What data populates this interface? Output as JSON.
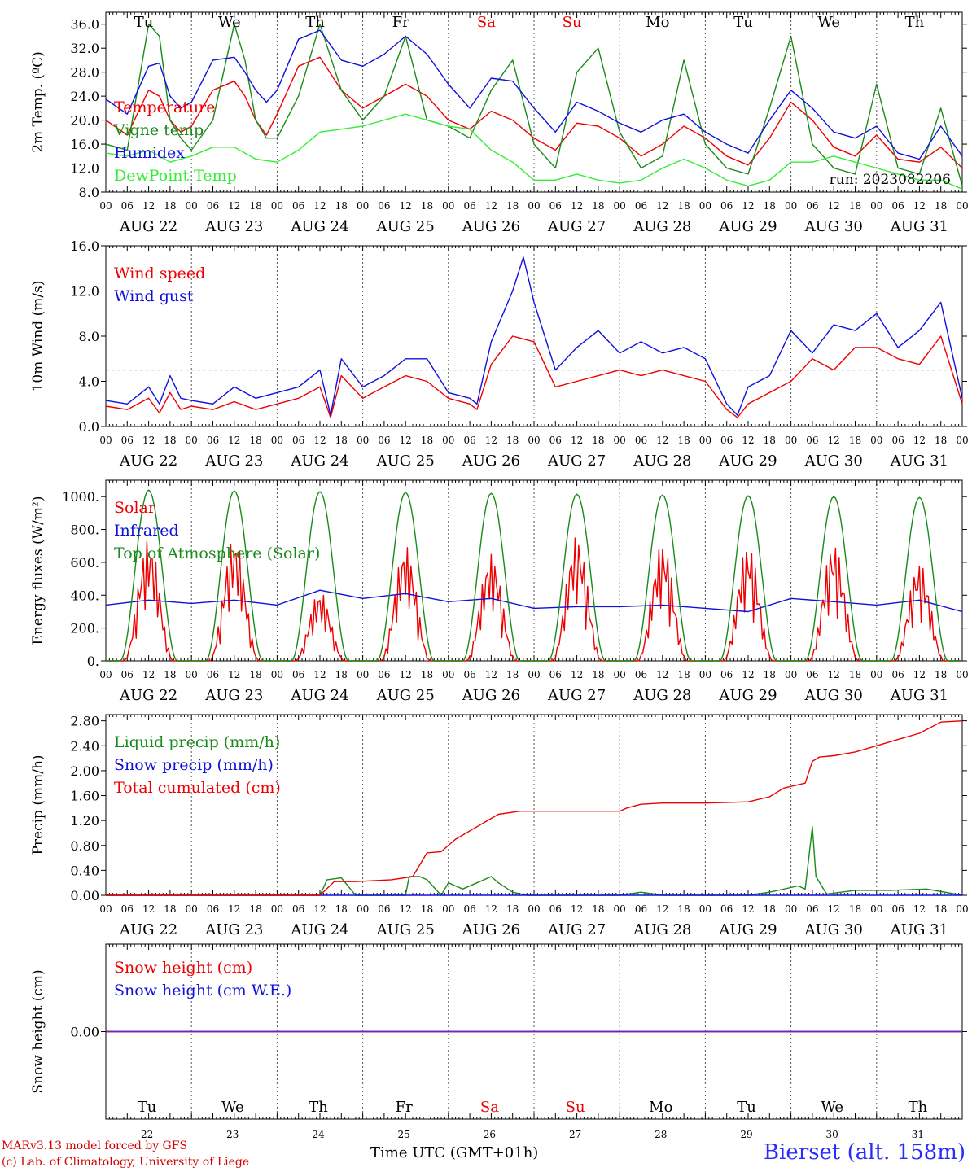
{
  "colors": {
    "red": "#ee0000",
    "green": "#1a8a1a",
    "blue": "#1010dd",
    "lightgreen": "#33ee33",
    "purple": "#7a22aa",
    "weekend": "#ee0000"
  },
  "time_axis": {
    "hour_labels": [
      "00",
      "06",
      "12",
      "18"
    ],
    "last_label": "00",
    "date_labels": [
      "AUG 22",
      "AUG 23",
      "AUG 24",
      "AUG 25",
      "AUG 26",
      "AUG 27",
      "AUG 28",
      "AUG 29",
      "AUG 30",
      "AUG 31"
    ],
    "days": [
      "Tu",
      "We",
      "Th",
      "Fr",
      "Sa",
      "Su",
      "Mo",
      "Tu",
      "We",
      "Th"
    ],
    "day_weekend": [
      false,
      false,
      false,
      false,
      true,
      true,
      false,
      false,
      false,
      false
    ],
    "day_numbers": [
      "22",
      "23",
      "24",
      "25",
      "26",
      "27",
      "28",
      "29",
      "30",
      "31"
    ]
  },
  "footer": {
    "credit_line1": "MARv3.13 model forced by GFS",
    "credit_line2": "(c) Lab. of Climatology, University of Liege",
    "x_title": "Time UTC (GMT+01h)",
    "station": "Bierset (alt. 158m)"
  },
  "chart_data": [
    {
      "type": "line",
      "ylabel": "2m Temp. (ºC)",
      "ylim": [
        8,
        38
      ],
      "yticks": [
        8,
        12,
        16,
        20,
        24,
        28,
        32,
        36
      ],
      "ytick_labels": [
        "8.0",
        "12.0",
        "16.0",
        "20.0",
        "24.0",
        "28.0",
        "32.0",
        "36.0"
      ],
      "annotation": "run: 2023082206",
      "x_unit": "hours since AUG 22 00 UTC",
      "x_range": [
        0,
        240
      ],
      "series": [
        {
          "name": "Temperature",
          "color": "red",
          "x": [
            0,
            6,
            12,
            15,
            18,
            21,
            24,
            30,
            36,
            39,
            42,
            45,
            48,
            54,
            60,
            66,
            72,
            78,
            84,
            90,
            96,
            102,
            108,
            114,
            120,
            126,
            132,
            138,
            144,
            150,
            156,
            162,
            168,
            174,
            180,
            186,
            192,
            198,
            204,
            210,
            216,
            222,
            228,
            234,
            240
          ],
          "y": [
            20,
            17.5,
            25,
            24,
            20,
            18,
            19,
            25,
            26.5,
            24,
            20,
            17.5,
            21,
            29,
            30.5,
            25,
            22,
            24,
            26,
            24,
            20,
            18.5,
            21.5,
            20,
            17,
            15,
            19.5,
            19,
            17,
            14,
            16,
            19,
            17,
            14,
            12.5,
            17,
            23,
            20,
            15.5,
            14,
            17.5,
            13.5,
            13,
            15.5,
            12
          ]
        },
        {
          "name": "Vigne temp",
          "color": "green",
          "x": [
            0,
            6,
            12,
            15,
            18,
            21,
            24,
            30,
            36,
            39,
            42,
            45,
            48,
            54,
            60,
            66,
            72,
            78,
            84,
            90,
            96,
            102,
            108,
            114,
            120,
            126,
            132,
            138,
            144,
            150,
            156,
            162,
            168,
            174,
            180,
            186,
            192,
            198,
            204,
            210,
            216,
            222,
            228,
            234,
            240
          ],
          "y": [
            16,
            15,
            36,
            34,
            20,
            17,
            15,
            20,
            36,
            30,
            20,
            17,
            17,
            24,
            36,
            25,
            20,
            24,
            34,
            20,
            19,
            17,
            25,
            30,
            16,
            12,
            28,
            32,
            18,
            12,
            14,
            30,
            16,
            12,
            11,
            22,
            34,
            16,
            12,
            11,
            26,
            12,
            11,
            22,
            9
          ]
        },
        {
          "name": "Humidex",
          "color": "blue",
          "x": [
            0,
            6,
            12,
            15,
            18,
            21,
            24,
            30,
            36,
            39,
            42,
            45,
            48,
            54,
            60,
            66,
            72,
            78,
            84,
            90,
            96,
            102,
            108,
            114,
            120,
            126,
            132,
            138,
            144,
            150,
            156,
            162,
            168,
            174,
            180,
            186,
            192,
            198,
            204,
            210,
            216,
            222,
            228,
            234,
            240
          ],
          "y": [
            23.5,
            21,
            29,
            29.5,
            24,
            22,
            23,
            30,
            30.5,
            28,
            25,
            23,
            25,
            33.5,
            35,
            30,
            29,
            31,
            34,
            31,
            26,
            22,
            27,
            26.5,
            22,
            18,
            23,
            21.5,
            19.5,
            18,
            20,
            21,
            18,
            16,
            14.5,
            20,
            25,
            22,
            18,
            17,
            19,
            14.5,
            13.5,
            19,
            14
          ]
        },
        {
          "name": "DewPoint Temp",
          "color": "lightgreen",
          "x": [
            0,
            6,
            12,
            18,
            24,
            30,
            36,
            42,
            48,
            54,
            60,
            66,
            72,
            78,
            84,
            90,
            96,
            102,
            108,
            114,
            120,
            126,
            132,
            138,
            144,
            150,
            156,
            162,
            168,
            174,
            180,
            186,
            192,
            198,
            204,
            210,
            216,
            222,
            228,
            234,
            240
          ],
          "y": [
            14.5,
            14,
            15,
            13,
            14,
            15.5,
            15.5,
            13.5,
            13,
            15,
            18,
            18.5,
            19,
            20,
            21,
            20,
            19,
            18.5,
            15,
            13,
            10,
            10,
            11,
            10,
            9.5,
            10,
            12,
            13.5,
            12,
            10,
            9,
            10,
            13,
            13,
            14,
            13,
            12,
            11,
            10,
            10,
            8.5
          ]
        }
      ],
      "legend": [
        "Temperature",
        "Vigne temp",
        "Humidex",
        "DewPoint Temp"
      ],
      "legend_placement": "left",
      "grid": "vertical dotted at day boundaries"
    },
    {
      "type": "line",
      "ylabel": "10m Wind (m/s)",
      "ylim": [
        0,
        16
      ],
      "yticks": [
        0,
        4,
        8,
        12,
        16
      ],
      "ytick_labels": [
        "0.0",
        "4.0",
        "8.0",
        "12.0",
        "16.0"
      ],
      "reference_line": 5,
      "x_unit": "hours since AUG 22 00 UTC",
      "x_range": [
        0,
        240
      ],
      "series": [
        {
          "name": "Wind speed",
          "color": "red",
          "x": [
            0,
            6,
            12,
            15,
            18,
            21,
            24,
            30,
            36,
            42,
            48,
            54,
            60,
            63,
            66,
            72,
            78,
            84,
            90,
            96,
            102,
            104,
            108,
            114,
            120,
            126,
            132,
            138,
            144,
            150,
            156,
            162,
            168,
            174,
            177,
            180,
            186,
            192,
            198,
            204,
            210,
            216,
            222,
            228,
            234,
            240
          ],
          "y": [
            1.8,
            1.5,
            2.5,
            1.2,
            3,
            1.5,
            1.8,
            1.5,
            2.2,
            1.5,
            2,
            2.5,
            3.5,
            0.8,
            4.5,
            2.5,
            3.5,
            4.5,
            4,
            2.5,
            2,
            1.5,
            5.5,
            8,
            7.5,
            3.5,
            4,
            4.5,
            5,
            4.5,
            5,
            4.5,
            4,
            1.5,
            0.8,
            2,
            3,
            4,
            6,
            5,
            7,
            7,
            6,
            5.5,
            8,
            2
          ]
        },
        {
          "name": "Wind gust",
          "color": "blue",
          "x": [
            0,
            6,
            12,
            15,
            18,
            21,
            24,
            30,
            36,
            42,
            48,
            54,
            60,
            63,
            66,
            72,
            78,
            84,
            90,
            96,
            102,
            104,
            108,
            114,
            117,
            120,
            126,
            132,
            138,
            144,
            150,
            156,
            162,
            168,
            174,
            177,
            180,
            186,
            192,
            198,
            204,
            210,
            216,
            222,
            228,
            234,
            240
          ],
          "y": [
            2.3,
            2,
            3.5,
            2,
            4.5,
            2.5,
            2.3,
            2,
            3.5,
            2.5,
            3,
            3.5,
            5,
            1,
            6,
            3.5,
            4.5,
            6,
            6,
            3,
            2.5,
            2,
            7.5,
            12,
            15,
            11,
            5,
            7,
            8.5,
            6.5,
            7.5,
            6.5,
            7,
            6,
            2,
            1,
            3.5,
            4.5,
            8.5,
            6.5,
            9,
            8.5,
            10,
            7,
            8.5,
            11,
            2.5
          ]
        }
      ],
      "legend": [
        "Wind speed",
        "Wind gust"
      ],
      "legend_placement": "top-left"
    },
    {
      "type": "line",
      "ylabel": "Energy fluxes (W/m²)",
      "ylim": [
        0,
        1100
      ],
      "yticks": [
        0,
        200,
        400,
        600,
        800,
        1000
      ],
      "ytick_labels": [
        "0.",
        "200.",
        "400.",
        "600.",
        "800.",
        "1000."
      ],
      "x_unit": "hours since AUG 22 00 UTC",
      "x_range": [
        0,
        240
      ],
      "series": [
        {
          "name": "Solar",
          "color": "red",
          "daily_peak_W_m2": [
            740,
            750,
            420,
            700,
            650,
            760,
            720,
            710,
            720,
            600
          ]
        },
        {
          "name": "Infrared",
          "color": "blue",
          "x": [
            0,
            12,
            24,
            36,
            48,
            60,
            72,
            84,
            96,
            108,
            120,
            132,
            144,
            156,
            168,
            180,
            192,
            204,
            216,
            228,
            240
          ],
          "y": [
            340,
            370,
            350,
            370,
            340,
            430,
            380,
            410,
            360,
            380,
            320,
            330,
            330,
            340,
            320,
            300,
            380,
            360,
            340,
            370,
            300
          ]
        },
        {
          "name": "Top of Atmosphere (Solar)",
          "color": "green",
          "daily_peak_W_m2": [
            1040,
            1035,
            1030,
            1025,
            1020,
            1015,
            1010,
            1005,
            1000,
            995
          ]
        }
      ],
      "legend": [
        "Solar",
        "Infrared",
        "Top of Atmosphere (Solar)"
      ],
      "legend_placement": "top-left"
    },
    {
      "type": "line",
      "ylabel": "Precip (mm/h)",
      "ylim": [
        0,
        2.9
      ],
      "yticks": [
        0,
        0.4,
        0.8,
        1.2,
        1.6,
        2.0,
        2.4,
        2.8
      ],
      "ytick_labels": [
        "0.00",
        "0.40",
        "0.80",
        "1.20",
        "1.60",
        "2.00",
        "2.40",
        "2.80"
      ],
      "x_unit": "hours since AUG 22 00 UTC",
      "x_range": [
        0,
        240
      ],
      "series": [
        {
          "name": "Liquid precip (mm/h)",
          "color": "green",
          "x": [
            0,
            60,
            62,
            66,
            70,
            84,
            85,
            88,
            90,
            94,
            96,
            98,
            100,
            104,
            108,
            110,
            114,
            118,
            120,
            144,
            150,
            156,
            168,
            180,
            186,
            194,
            196,
            198,
            199,
            202,
            210,
            220,
            230,
            240
          ],
          "y": [
            0,
            0,
            0.25,
            0.28,
            0,
            0,
            0.3,
            0.3,
            0.25,
            0,
            0.2,
            0.15,
            0.1,
            0.2,
            0.3,
            0.2,
            0.05,
            0,
            0,
            0,
            0.05,
            0,
            0,
            0,
            0.05,
            0.15,
            0.1,
            1.1,
            0.3,
            0.02,
            0.08,
            0.08,
            0.1,
            0
          ]
        },
        {
          "name": "Snow precip (mm/h)",
          "color": "blue",
          "x": [
            0,
            240
          ],
          "y": [
            0,
            0
          ]
        },
        {
          "name": "Total cumulated (cm)",
          "color": "red",
          "x": [
            0,
            60,
            64,
            70,
            80,
            86,
            90,
            94,
            98,
            104,
            110,
            116,
            120,
            144,
            146,
            150,
            156,
            168,
            180,
            186,
            190,
            196,
            198,
            200,
            204,
            210,
            216,
            222,
            228,
            234,
            240
          ],
          "y": [
            0,
            0,
            0.22,
            0.22,
            0.25,
            0.3,
            0.68,
            0.7,
            0.9,
            1.1,
            1.3,
            1.35,
            1.35,
            1.35,
            1.4,
            1.46,
            1.48,
            1.48,
            1.5,
            1.58,
            1.72,
            1.8,
            2.15,
            2.22,
            2.24,
            2.3,
            2.4,
            2.5,
            2.6,
            2.78,
            2.8
          ]
        }
      ],
      "legend": [
        "Liquid precip (mm/h)",
        "Snow precip (mm/h)",
        "Total cumulated (cm)"
      ],
      "legend_placement": "top-left"
    },
    {
      "type": "line",
      "ylabel": "Snow height (cm)",
      "yticks": [
        0
      ],
      "ytick_labels": [
        "0.00"
      ],
      "x_unit": "hours since AUG 22 00 UTC",
      "x_range": [
        0,
        240
      ],
      "series": [
        {
          "name": "Snow height (cm)",
          "color": "red",
          "x": [
            0,
            240
          ],
          "y": [
            0,
            0
          ]
        },
        {
          "name": "Snow height (cm W.E.)",
          "color": "blue",
          "x": [
            0,
            240
          ],
          "y": [
            0,
            0
          ]
        }
      ],
      "legend": [
        "Snow height (cm)",
        "Snow height (cm W.E.)"
      ],
      "legend_placement": "top-left"
    }
  ]
}
